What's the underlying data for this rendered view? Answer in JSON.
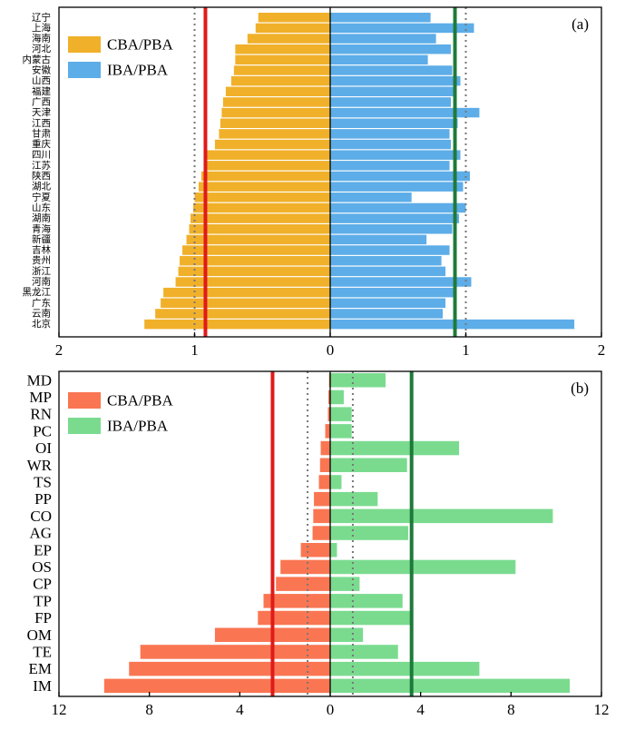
{
  "colors": {
    "cba_a": "#F0B02A",
    "iba_a": "#5DADE8",
    "cba_b": "#FA7652",
    "iba_b": "#7ADB8F",
    "cba_mean": "#E01A1A",
    "iba_mean": "#1E7A3A",
    "reference": "#777777"
  },
  "chart_data": [
    {
      "type": "bar",
      "orientation": "horizontal-butterfly",
      "panel_label": "(a)",
      "legend_position": "top-left",
      "legend": [
        "CBA/PBA",
        "IBA/PBA"
      ],
      "xlim": [
        -2,
        2
      ],
      "xtick_values": [
        -2,
        -1,
        0,
        1,
        2
      ],
      "xtick_labels": [
        "2",
        "1",
        "0",
        "1",
        "2"
      ],
      "reference_lines": [
        -1,
        1
      ],
      "mean_lines": {
        "CBA/PBA": 0.92,
        "IBA/PBA": 0.92
      },
      "categories": [
        "辽宁",
        "上海",
        "海南",
        "河北",
        "内蒙古",
        "安徽",
        "山西",
        "福建",
        "广西",
        "天津",
        "江西",
        "甘肃",
        "重庆",
        "四川",
        "江苏",
        "陕西",
        "湖北",
        "宁夏",
        "山东",
        "湖南",
        "青海",
        "新疆",
        "吉林",
        "贵州",
        "浙江",
        "河南",
        "黑龙江",
        "广东",
        "云南",
        "北京"
      ],
      "series": [
        {
          "name": "CBA/PBA",
          "values": [
            0.53,
            0.55,
            0.61,
            0.7,
            0.7,
            0.71,
            0.73,
            0.77,
            0.79,
            0.8,
            0.81,
            0.82,
            0.85,
            0.92,
            0.93,
            0.95,
            0.97,
            1.0,
            1.01,
            1.03,
            1.04,
            1.06,
            1.09,
            1.11,
            1.12,
            1.14,
            1.23,
            1.25,
            1.29,
            1.37
          ]
        },
        {
          "name": "IBA/PBA",
          "values": [
            0.74,
            1.06,
            0.78,
            0.89,
            0.72,
            0.9,
            0.96,
            0.93,
            0.89,
            1.1,
            0.94,
            0.88,
            0.89,
            0.96,
            0.88,
            1.03,
            0.98,
            0.6,
            1.0,
            0.95,
            0.9,
            0.71,
            0.88,
            0.82,
            0.85,
            1.04,
            0.91,
            0.85,
            0.83,
            1.8
          ]
        }
      ]
    },
    {
      "type": "bar",
      "orientation": "horizontal-butterfly",
      "panel_label": "(b)",
      "legend_position": "top-left",
      "legend": [
        "CBA/PBA",
        "IBA/PBA"
      ],
      "xlim": [
        -12,
        12
      ],
      "xtick_values": [
        -12,
        -8,
        -4,
        0,
        4,
        8,
        12
      ],
      "xtick_labels": [
        "12",
        "8",
        "4",
        "0",
        "4",
        "8",
        "12"
      ],
      "reference_lines": [
        -1,
        1
      ],
      "mean_lines": {
        "CBA/PBA": 2.55,
        "IBA/PBA": 3.6
      },
      "categories": [
        "MD",
        "MP",
        "RN",
        "PC",
        "OI",
        "WR",
        "TS",
        "PP",
        "CO",
        "AG",
        "EP",
        "OS",
        "CP",
        "TP",
        "FP",
        "OM",
        "TE",
        "EM",
        "IM"
      ],
      "series": [
        {
          "name": "CBA/PBA",
          "values": [
            0.05,
            0.08,
            0.1,
            0.22,
            0.42,
            0.45,
            0.5,
            0.72,
            0.75,
            0.78,
            1.3,
            2.2,
            2.4,
            2.95,
            3.2,
            5.1,
            8.4,
            8.9,
            10.0
          ]
        },
        {
          "name": "IBA/PBA",
          "values": [
            2.45,
            0.6,
            0.95,
            0.95,
            5.7,
            3.4,
            0.5,
            2.1,
            9.85,
            3.45,
            0.3,
            8.2,
            1.3,
            3.2,
            3.6,
            1.45,
            3.0,
            6.6,
            10.6
          ]
        }
      ]
    }
  ]
}
